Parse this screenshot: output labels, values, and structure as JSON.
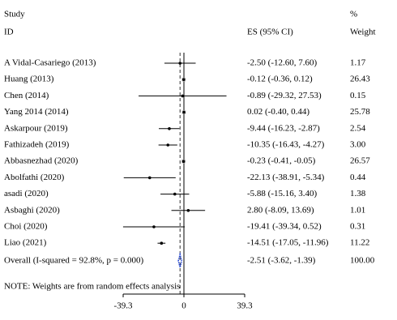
{
  "chart_data": {
    "type": "forest",
    "header": {
      "study": "Study",
      "id": "ID",
      "es": "ES (95% CI)",
      "percent": "%",
      "weight": "Weight"
    },
    "studies": [
      "A Vidal-Casariego  (2013)",
      "Huang  (2013)",
      "Chen  (2014)",
      "Yang 2014  (2014)",
      "Askarpour  (2019)",
      "Fathizadeh  (2019)",
      "Abbasnezhad  (2020)",
      "Abolfathi  (2020)",
      "asadi  (2020)",
      "Asbaghi  (2020)",
      "Choi  (2020)",
      "Liao  (2021)"
    ],
    "es": [
      -2.5,
      -0.12,
      -0.89,
      0.02,
      -9.44,
      -10.35,
      -0.23,
      -22.13,
      -5.88,
      2.8,
      -19.41,
      -14.51
    ],
    "ci_low": [
      -12.6,
      -0.36,
      -29.32,
      -0.4,
      -16.23,
      -16.43,
      -0.41,
      -38.91,
      -15.16,
      -8.09,
      -39.34,
      -17.05
    ],
    "ci_high": [
      7.6,
      0.12,
      27.53,
      0.44,
      -2.87,
      -4.27,
      -0.05,
      -5.34,
      3.4,
      13.69,
      0.52,
      -11.96
    ],
    "es_labels": [
      "-2.50 (-12.60, 7.60)",
      "-0.12 (-0.36, 0.12)",
      "-0.89 (-29.32, 27.53)",
      "0.02 (-0.40, 0.44)",
      "-9.44 (-16.23, -2.87)",
      "-10.35 (-16.43, -4.27)",
      "-0.23 (-0.41, -0.05)",
      "-22.13 (-38.91, -5.34)",
      "-5.88 (-15.16, 3.40)",
      "2.80 (-8.09, 13.69)",
      "-19.41 (-39.34, 0.52)",
      "-14.51 (-17.05, -11.96)"
    ],
    "weights": [
      1.17,
      26.43,
      0.15,
      25.78,
      2.54,
      3.0,
      26.57,
      0.44,
      1.38,
      1.01,
      0.31,
      11.22
    ],
    "weight_labels": [
      "1.17",
      "26.43",
      "0.15",
      "25.78",
      "2.54",
      "3.00",
      "26.57",
      "0.44",
      "1.38",
      "1.01",
      "0.31",
      "11.22"
    ],
    "overall": {
      "name": "Overall  (I-squared = 92.8%, p = 0.000)",
      "es": -2.51,
      "ci_low": -3.62,
      "ci_high": -1.39,
      "es_label": "-2.51 (-3.62, -1.39)",
      "weight": 100.0,
      "weight_label": "100.00"
    },
    "note": "NOTE: Weights are from random effects analysis",
    "xlim": [
      -39.3,
      39.3
    ],
    "xticks": [
      -39.3,
      0,
      39.3
    ]
  }
}
